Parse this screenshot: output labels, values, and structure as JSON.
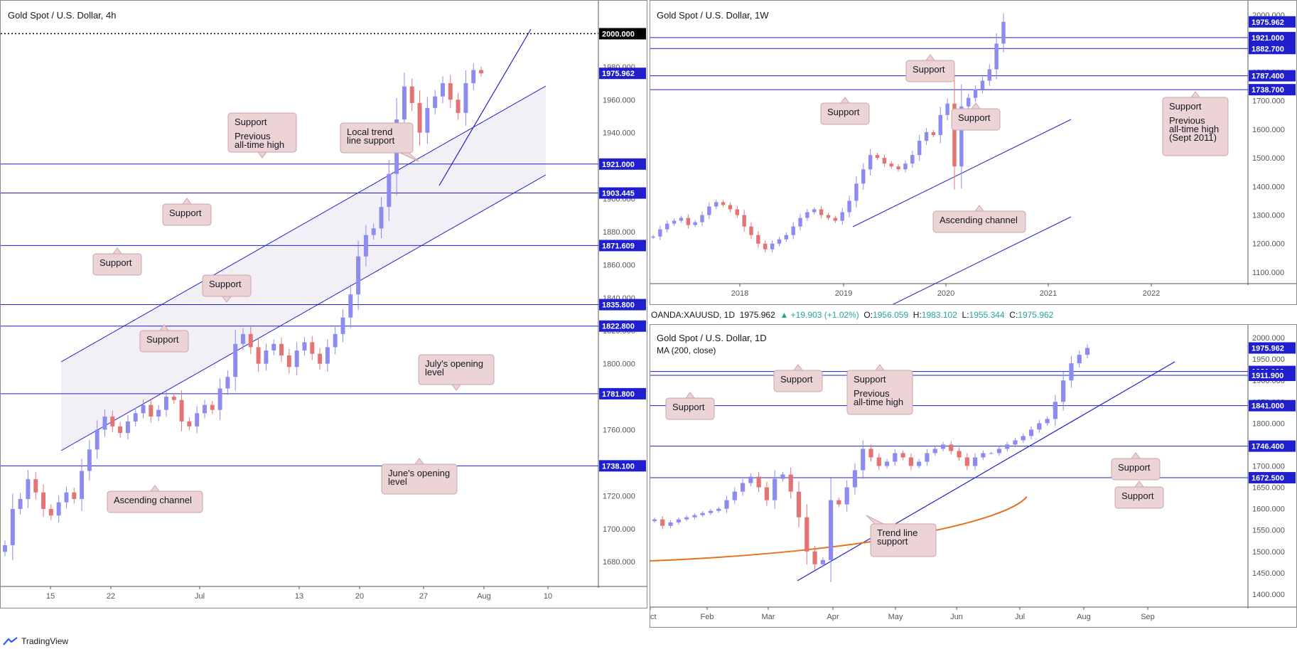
{
  "footer": {
    "brand": "TradingView",
    "logo_icon": "tradingview-logo-icon"
  },
  "quote_bar": {
    "symbol": "OANDA:XAUUSD, 1D",
    "last": "1975.962",
    "change": "▲ +19.903 (+1.02%)",
    "o_label": "O:",
    "o": "1956.059",
    "h_label": "H:",
    "h": "1983.102",
    "l_label": "L:",
    "l": "1955.344",
    "c_label": "C:",
    "c": "1975.962"
  },
  "colors": {
    "line": "#1f1fd0",
    "up": "#8b8bf0",
    "down": "#e57373",
    "callout_bg": "#ecd3d6",
    "callout_border": "#c9a4a9",
    "ma": "#e8711c",
    "price_tag": "#1f1fd0"
  },
  "chart_data": [
    {
      "type": "candlestick",
      "title": "Gold Spot / U.S. Dollar, 4h",
      "x_ticks": [
        "15",
        "22",
        "Jul",
        "13",
        "20",
        "27",
        "Aug",
        "10"
      ],
      "y_ticks": [
        "1680.000",
        "1700.000",
        "1720.000",
        "1740.000",
        "1760.000",
        "1780.000",
        "1800.000",
        "1820.000",
        "1840.000",
        "1860.000",
        "1880.000",
        "1900.000",
        "1920.000",
        "1940.000",
        "1960.000",
        "1980.000"
      ],
      "ylim": [
        1665,
        2020
      ],
      "price_labels": [
        {
          "value": 2000.0,
          "text": "2000.000",
          "style": "black"
        },
        {
          "value": 1975.962,
          "text": "1975.962",
          "style": "blue"
        },
        {
          "value": 1921.0,
          "text": "1921.000",
          "style": "blue"
        },
        {
          "value": 1903.445,
          "text": "1903.445",
          "style": "blue"
        },
        {
          "value": 1871.609,
          "text": "1871.609",
          "style": "blue"
        },
        {
          "value": 1835.8,
          "text": "1835.800",
          "style": "blue"
        },
        {
          "value": 1822.8,
          "text": "1822.800",
          "style": "blue"
        },
        {
          "value": 1781.8,
          "text": "1781.800",
          "style": "blue"
        },
        {
          "value": 1738.1,
          "text": "1738.100",
          "style": "blue"
        }
      ],
      "callouts": [
        {
          "lines": [
            "Support",
            "Previous",
            "all-time high"
          ]
        },
        {
          "lines": [
            "Local trend",
            "line support"
          ]
        },
        {
          "lines": [
            "Support"
          ]
        },
        {
          "lines": [
            "Support"
          ]
        },
        {
          "lines": [
            "Support"
          ]
        },
        {
          "lines": [
            "Support"
          ]
        },
        {
          "lines": [
            "July's opening",
            "level"
          ]
        },
        {
          "lines": [
            "June's opening",
            "level"
          ]
        },
        {
          "lines": [
            "Ascending channel"
          ]
        }
      ],
      "price_path": [
        1690,
        1712,
        1718,
        1730,
        1722,
        1712,
        1708,
        1716,
        1722,
        1718,
        1735,
        1748,
        1760,
        1768,
        1762,
        1758,
        1765,
        1770,
        1775,
        1768,
        1772,
        1780,
        1778,
        1765,
        1762,
        1770,
        1775,
        1772,
        1785,
        1792,
        1812,
        1818,
        1810,
        1800,
        1808,
        1812,
        1805,
        1798,
        1808,
        1813,
        1806,
        1800,
        1810,
        1818,
        1828,
        1842,
        1865,
        1878,
        1882,
        1895,
        1915,
        1948,
        1968,
        1958,
        1940,
        1955,
        1962,
        1970,
        1960,
        1952,
        1970,
        1978,
        1975.962
      ]
    },
    {
      "type": "candlestick",
      "title": "Gold Spot / U.S. Dollar, 1W",
      "x_ticks": [
        "2018",
        "2019",
        "2020",
        "2021",
        "2022"
      ],
      "y_ticks": [
        "1100.000",
        "1200.000",
        "1300.000",
        "1400.000",
        "1500.000",
        "1600.000",
        "1700.000",
        "1800.000",
        "1900.000",
        "2000.000"
      ],
      "ylim": [
        1060,
        2050
      ],
      "price_labels": [
        {
          "value": 1975.962,
          "text": "1975.962",
          "style": "blue"
        },
        {
          "value": 1921.0,
          "text": "1921.000",
          "style": "blue"
        },
        {
          "value": 1882.7,
          "text": "1882.700",
          "style": "blue"
        },
        {
          "value": 1787.4,
          "text": "1787.400",
          "style": "blue"
        },
        {
          "value": 1738.7,
          "text": "1738.700",
          "style": "blue"
        }
      ],
      "callouts": [
        {
          "lines": [
            "Support"
          ]
        },
        {
          "lines": [
            "Support"
          ]
        },
        {
          "lines": [
            "Support"
          ]
        },
        {
          "lines": [
            "Support",
            "Previous",
            "all-time high",
            "(Sept 2011)"
          ]
        },
        {
          "lines": [
            "Ascending channel"
          ]
        }
      ],
      "price_path": [
        1225,
        1250,
        1270,
        1280,
        1290,
        1265,
        1275,
        1300,
        1330,
        1345,
        1335,
        1320,
        1300,
        1260,
        1230,
        1200,
        1180,
        1200,
        1215,
        1230,
        1260,
        1290,
        1310,
        1320,
        1300,
        1290,
        1280,
        1310,
        1350,
        1410,
        1460,
        1510,
        1500,
        1480,
        1470,
        1460,
        1480,
        1510,
        1560,
        1590,
        1580,
        1650,
        1690,
        1470,
        1680,
        1710,
        1740,
        1770,
        1810,
        1900,
        1975.962
      ]
    },
    {
      "type": "candlestick",
      "title": "Gold Spot / U.S. Dollar, 1D",
      "subtitle": "MA (200, close)",
      "x_ticks": [
        "Feb",
        "Mar",
        "Apr",
        "May",
        "Jun",
        "Jul",
        "Aug",
        "Sep",
        "Oct"
      ],
      "y_ticks": [
        "1400.000",
        "1450.000",
        "1500.000",
        "1550.000",
        "1600.000",
        "1650.000",
        "1700.000",
        "1750.000",
        "1800.000",
        "1850.000",
        "1900.000",
        "1950.000",
        "2000.000"
      ],
      "ylim": [
        1370,
        2030
      ],
      "price_labels": [
        {
          "value": 1975.962,
          "text": "1975.962",
          "style": "blue"
        },
        {
          "value": 1921.0,
          "text": "1921.000",
          "style": "blue"
        },
        {
          "value": 1911.9,
          "text": "1911.900",
          "style": "blue"
        },
        {
          "value": 1841.0,
          "text": "1841.000",
          "style": "blue"
        },
        {
          "value": 1746.4,
          "text": "1746.400",
          "style": "blue"
        },
        {
          "value": 1672.5,
          "text": "1672.500",
          "style": "blue"
        }
      ],
      "callouts": [
        {
          "lines": [
            "Support"
          ]
        },
        {
          "lines": [
            "Support",
            "Previous",
            "all-time high"
          ]
        },
        {
          "lines": [
            "Support"
          ]
        },
        {
          "lines": [
            "Support"
          ]
        },
        {
          "lines": [
            "Support"
          ]
        },
        {
          "lines": [
            "Trend line",
            "support"
          ]
        }
      ],
      "price_path": [
        1575,
        1560,
        1568,
        1575,
        1580,
        1585,
        1590,
        1595,
        1600,
        1620,
        1640,
        1660,
        1675,
        1650,
        1620,
        1670,
        1680,
        1640,
        1580,
        1500,
        1470,
        1480,
        1620,
        1610,
        1650,
        1690,
        1740,
        1720,
        1700,
        1710,
        1730,
        1720,
        1700,
        1710,
        1730,
        1740,
        1750,
        1735,
        1720,
        1700,
        1720,
        1730,
        1730,
        1740,
        1750,
        1760,
        1770,
        1785,
        1800,
        1810,
        1850,
        1900,
        1940,
        1960,
        1975.962
      ],
      "ma_start": 1478,
      "ma_end": 1628
    }
  ]
}
